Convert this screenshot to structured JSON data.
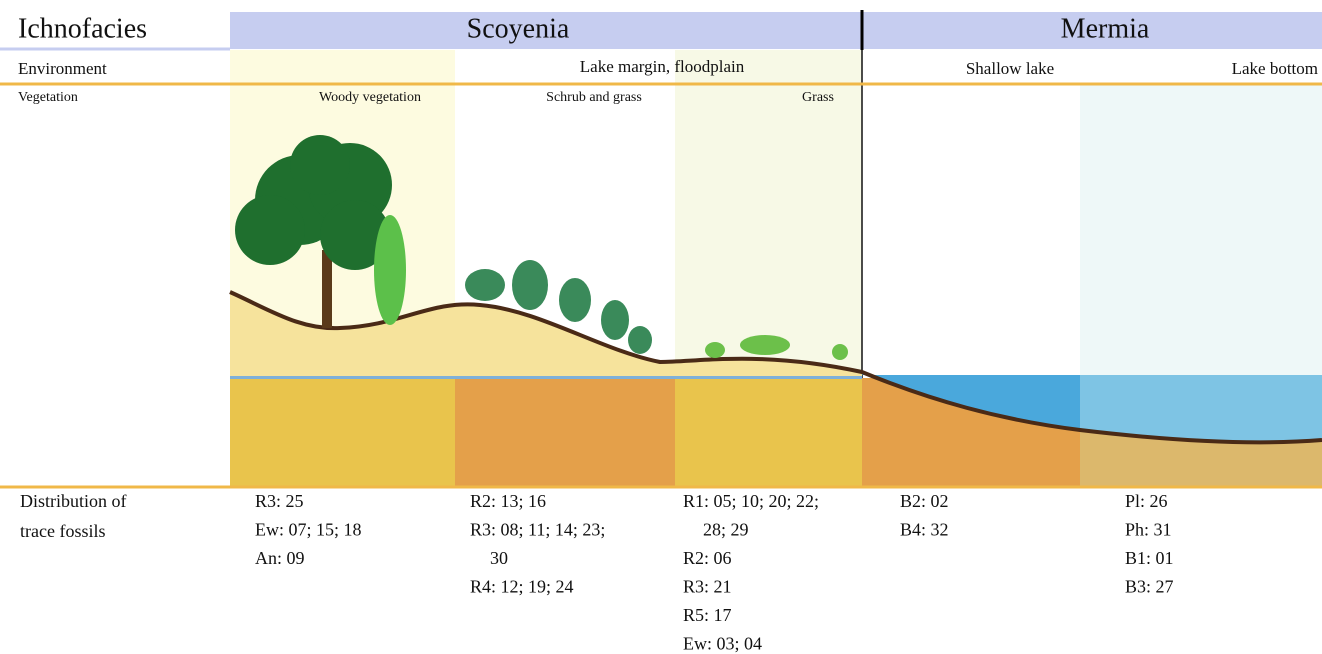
{
  "header": {
    "label": "Ichnofacies",
    "facies": [
      "Scoyenia",
      "Mermia"
    ]
  },
  "environment": {
    "label": "Environment",
    "zones": [
      "Lake margin, floodplain",
      "Shallow lake",
      "Lake bottom"
    ]
  },
  "vegetation": {
    "label": "Vegetation",
    "zones": [
      "Woody vegetation",
      "Schrub and grass",
      "Grass"
    ]
  },
  "distribution": {
    "label": [
      "Distribution of",
      "trace fossils"
    ],
    "columns": [
      [
        "R3: 25",
        "Ew: 07; 15; 18",
        "An: 09"
      ],
      [
        "R2: 13; 16",
        "R3: 08; 11; 14; 23;",
        "30",
        "R4: 12; 19; 24"
      ],
      [
        "R1: 05; 10; 20; 22;",
        "28; 29",
        "R2: 06",
        "R3: 21",
        "R5: 17",
        "Ew: 03; 04"
      ],
      [
        "B2: 02",
        "B4: 32"
      ],
      [
        "Pl: 26",
        "Ph: 31",
        "B1: 01",
        "B3: 27"
      ]
    ]
  }
}
